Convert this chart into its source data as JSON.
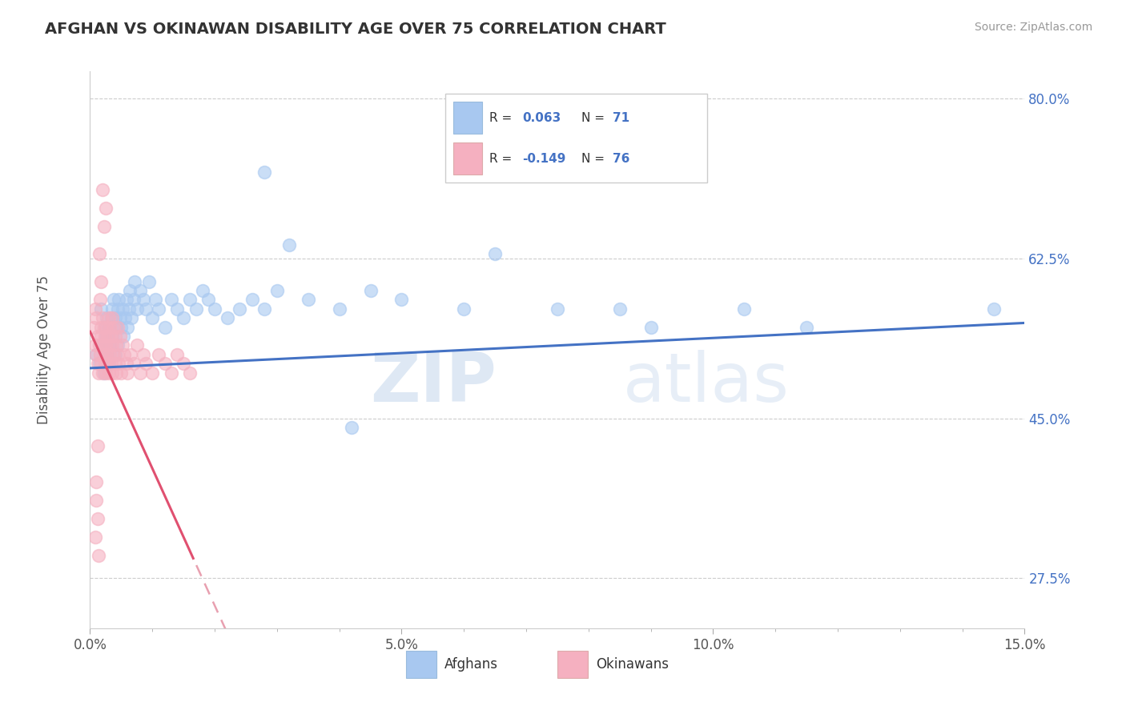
{
  "title": "AFGHAN VS OKINAWAN DISABILITY AGE OVER 75 CORRELATION CHART",
  "source": "Source: ZipAtlas.com",
  "ylabel": "Disability Age Over 75",
  "xlim": [
    0.0,
    15.0
  ],
  "ylim": [
    22.0,
    83.0
  ],
  "xticks": [
    0.0,
    5.0,
    10.0,
    15.0
  ],
  "xticklabels": [
    "0.0%",
    "5.0%",
    "10.0%",
    "15.0%"
  ],
  "yticks": [
    27.5,
    45.0,
    62.5,
    80.0
  ],
  "yticklabels": [
    "27.5%",
    "45.0%",
    "62.5%",
    "80.0%"
  ],
  "grid_color": "#cccccc",
  "background_color": "#ffffff",
  "afghan_color": "#a8c8f0",
  "okinawan_color": "#f5b0c0",
  "afghan_line_color": "#4472c4",
  "okinawan_line_color": "#e05070",
  "okinawan_line_dashed_color": "#e8a0b0",
  "R_afghan": 0.063,
  "N_afghan": 71,
  "R_okinawan": -0.149,
  "N_okinawan": 76,
  "legend_labels": [
    "Afghans",
    "Okinawans"
  ],
  "watermark_zip": "ZIP",
  "watermark_atlas": "atlas",
  "afghan_x": [
    0.1,
    0.15,
    0.18,
    0.2,
    0.22,
    0.24,
    0.25,
    0.26,
    0.28,
    0.3,
    0.3,
    0.32,
    0.34,
    0.35,
    0.36,
    0.38,
    0.4,
    0.4,
    0.42,
    0.44,
    0.45,
    0.46,
    0.48,
    0.5,
    0.52,
    0.54,
    0.56,
    0.58,
    0.6,
    0.62,
    0.64,
    0.66,
    0.7,
    0.72,
    0.75,
    0.8,
    0.85,
    0.9,
    0.95,
    1.0,
    1.05,
    1.1,
    1.2,
    1.3,
    1.4,
    1.5,
    1.6,
    1.7,
    1.8,
    1.9,
    2.0,
    2.2,
    2.4,
    2.6,
    2.8,
    3.0,
    3.5,
    4.0,
    4.5,
    5.0,
    6.0,
    7.5,
    8.5,
    10.5,
    14.5,
    2.8,
    3.2,
    4.2,
    6.5,
    9.0,
    11.5
  ],
  "afghan_y": [
    52.0,
    51.0,
    57.0,
    53.0,
    50.0,
    55.0,
    54.0,
    56.0,
    52.0,
    51.0,
    55.0,
    53.0,
    56.0,
    57.0,
    54.0,
    58.0,
    52.0,
    56.0,
    55.0,
    57.0,
    53.0,
    58.0,
    56.0,
    55.0,
    57.0,
    54.0,
    56.0,
    58.0,
    55.0,
    57.0,
    59.0,
    56.0,
    58.0,
    60.0,
    57.0,
    59.0,
    58.0,
    57.0,
    60.0,
    56.0,
    58.0,
    57.0,
    55.0,
    58.0,
    57.0,
    56.0,
    58.0,
    57.0,
    59.0,
    58.0,
    57.0,
    56.0,
    57.0,
    58.0,
    57.0,
    59.0,
    58.0,
    57.0,
    59.0,
    58.0,
    57.0,
    57.0,
    57.0,
    57.0,
    57.0,
    72.0,
    64.0,
    44.0,
    63.0,
    55.0,
    55.0
  ],
  "okinawan_x": [
    0.06,
    0.08,
    0.08,
    0.1,
    0.1,
    0.12,
    0.12,
    0.14,
    0.15,
    0.16,
    0.17,
    0.18,
    0.18,
    0.2,
    0.2,
    0.2,
    0.22,
    0.22,
    0.24,
    0.24,
    0.25,
    0.25,
    0.26,
    0.26,
    0.28,
    0.28,
    0.3,
    0.3,
    0.3,
    0.32,
    0.32,
    0.34,
    0.34,
    0.35,
    0.36,
    0.36,
    0.38,
    0.38,
    0.4,
    0.4,
    0.42,
    0.42,
    0.44,
    0.45,
    0.46,
    0.48,
    0.5,
    0.52,
    0.55,
    0.58,
    0.6,
    0.65,
    0.7,
    0.75,
    0.8,
    0.85,
    0.9,
    1.0,
    1.1,
    1.2,
    1.3,
    1.4,
    1.5,
    1.6,
    0.15,
    0.2,
    0.22,
    0.25,
    0.18,
    0.16,
    0.12,
    0.1,
    0.1,
    0.12,
    0.08,
    0.14
  ],
  "okinawan_y": [
    55.0,
    53.0,
    57.0,
    52.0,
    56.0,
    51.0,
    54.0,
    50.0,
    53.0,
    52.0,
    55.0,
    51.0,
    54.0,
    50.0,
    53.0,
    56.0,
    52.0,
    55.0,
    51.0,
    54.0,
    50.0,
    53.0,
    52.0,
    55.0,
    51.0,
    54.0,
    50.0,
    53.0,
    56.0,
    52.0,
    55.0,
    51.0,
    54.0,
    50.0,
    53.0,
    56.0,
    52.0,
    55.0,
    51.0,
    54.0,
    50.0,
    53.0,
    52.0,
    55.0,
    51.0,
    54.0,
    50.0,
    53.0,
    52.0,
    51.0,
    50.0,
    52.0,
    51.0,
    53.0,
    50.0,
    52.0,
    51.0,
    50.0,
    52.0,
    51.0,
    50.0,
    52.0,
    51.0,
    50.0,
    63.0,
    70.0,
    66.0,
    68.0,
    60.0,
    58.0,
    42.0,
    38.0,
    36.0,
    34.0,
    32.0,
    30.0
  ]
}
